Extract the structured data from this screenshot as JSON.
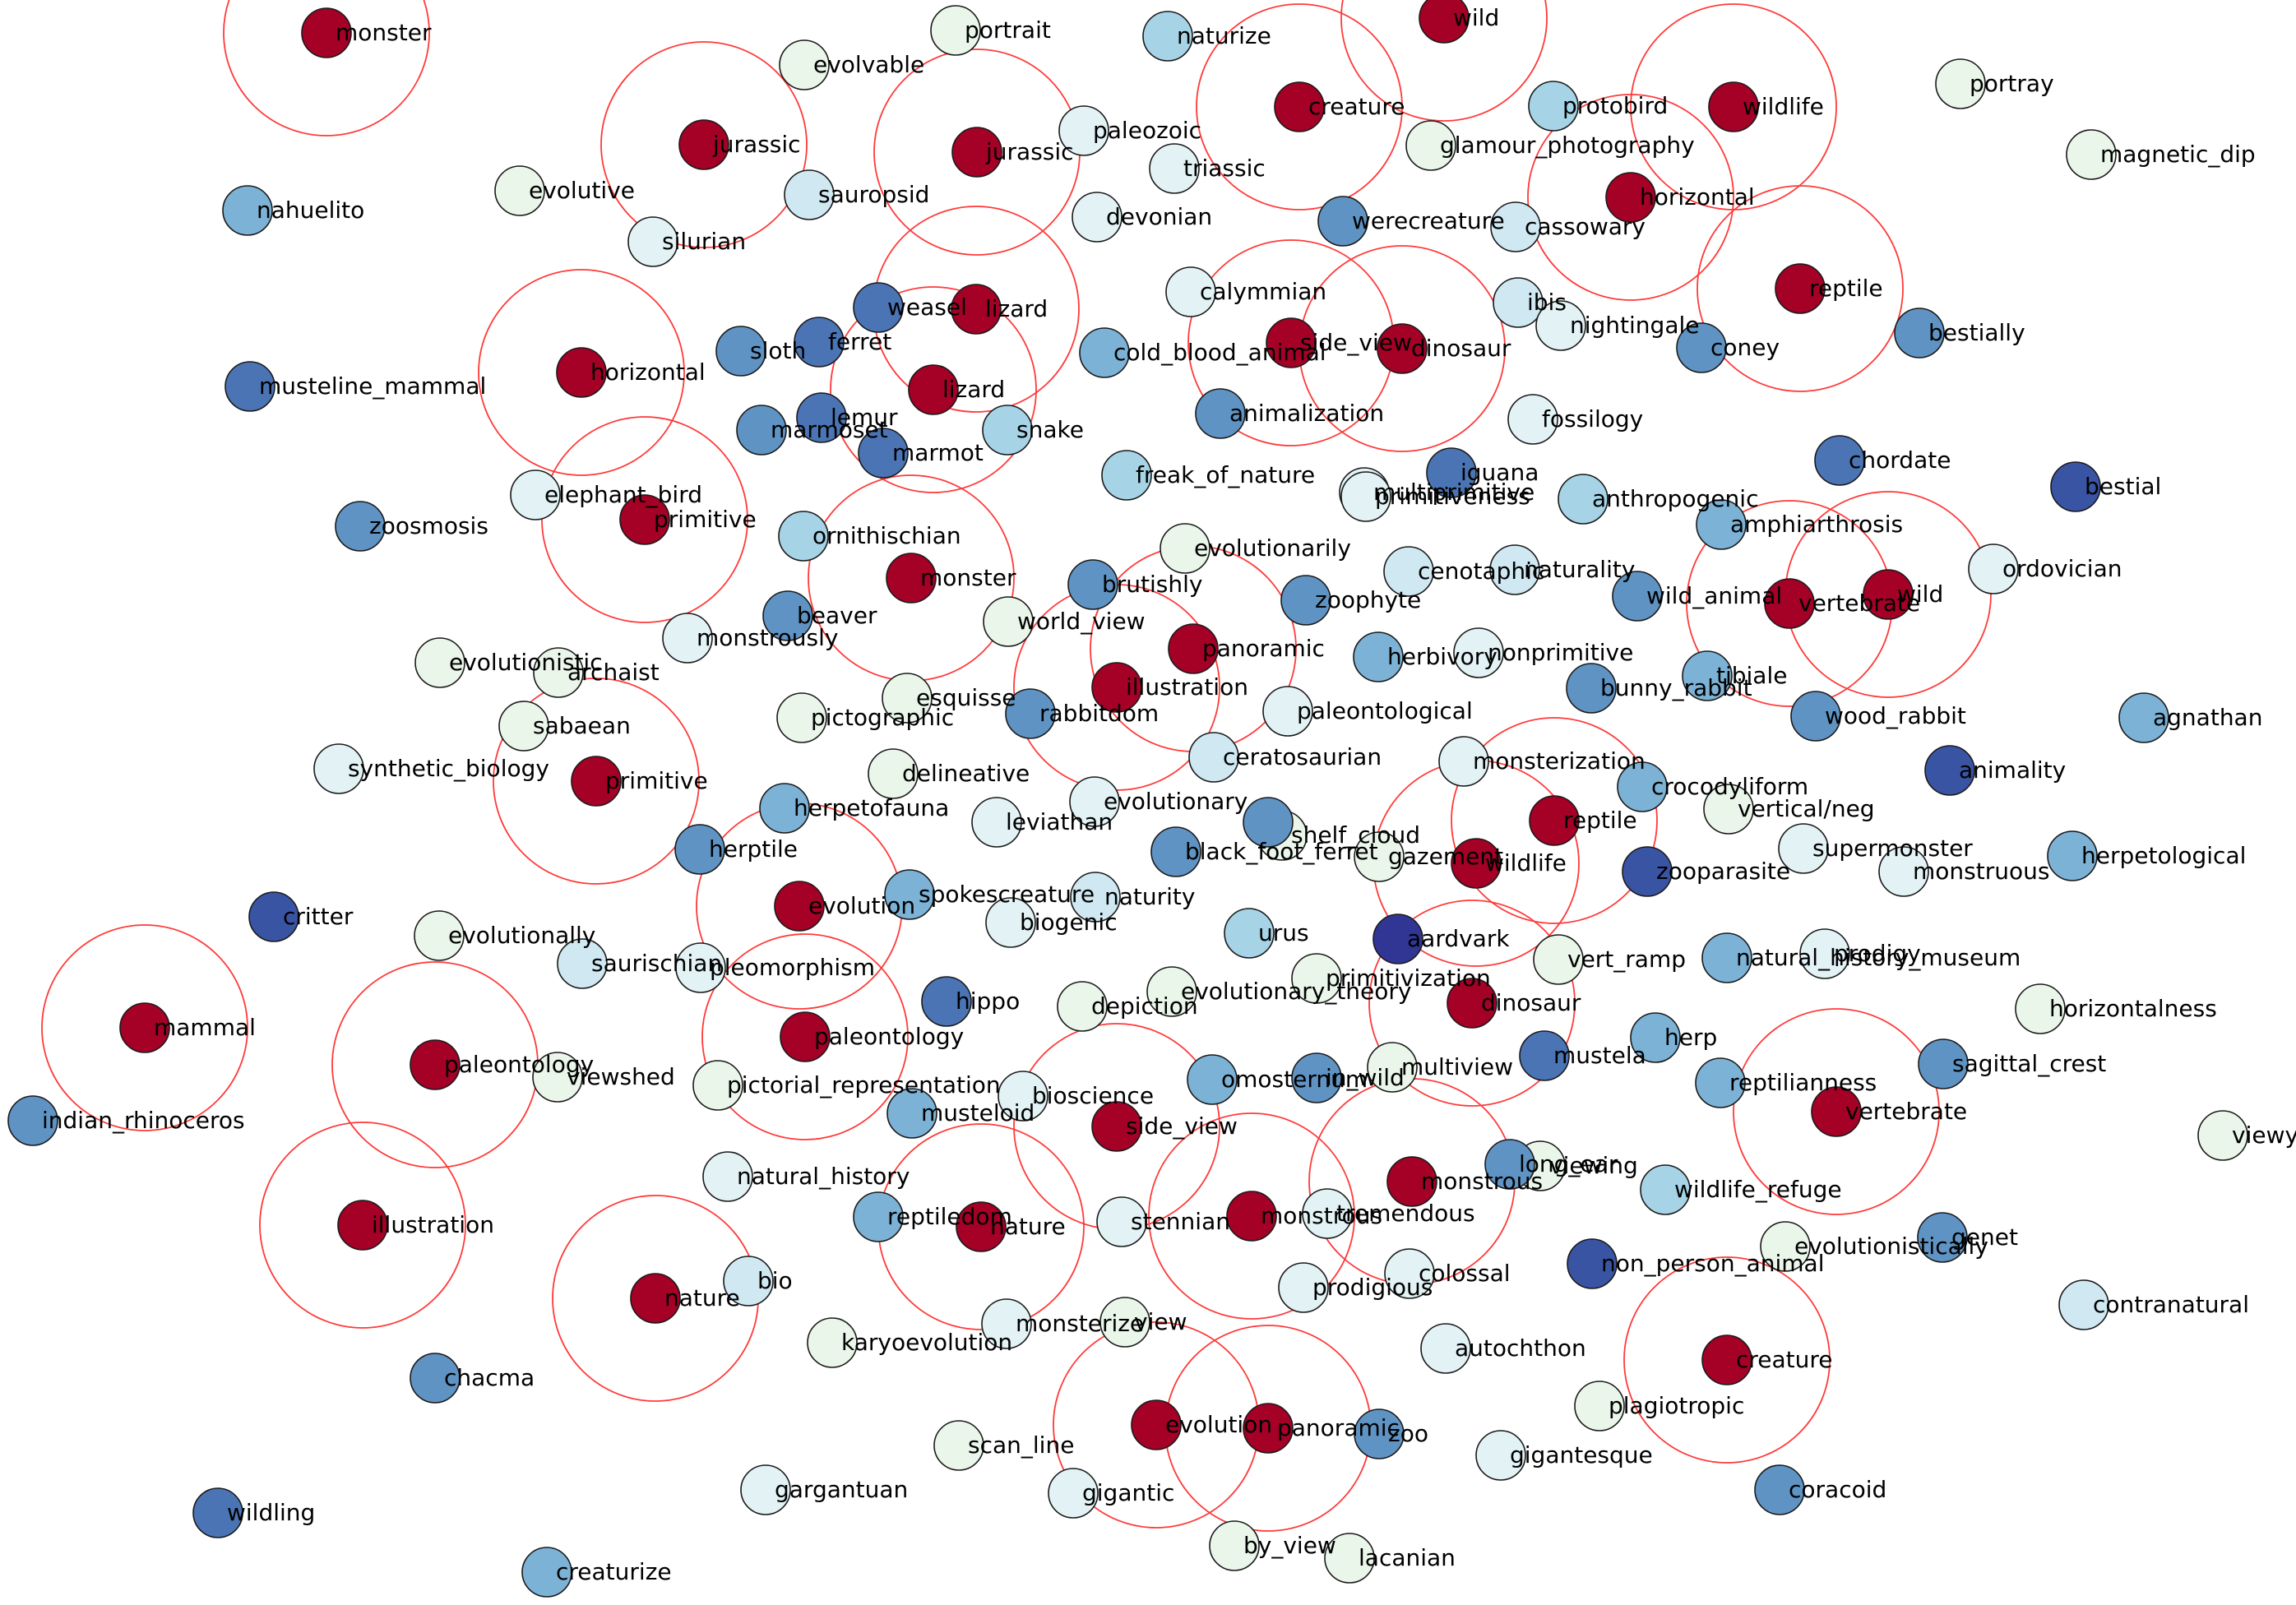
{
  "palette": {
    "seed": "#a50026",
    "c1": "#313695",
    "c2": "#3a54a4",
    "c3": "#4a74b4",
    "c4": "#5f93c3",
    "c5": "#7cb2d5",
    "c6": "#a6d4e6",
    "c7": "#cfe8f2",
    "c8": "#e2f2f5",
    "c9": "#eaf6ea",
    "ring": "#ff3a3a"
  },
  "nodes": [
    {
      "label": "monster",
      "c": "seed",
      "ring": true
    },
    {
      "label": "jurassic",
      "c": "seed",
      "ring": true
    },
    {
      "label": "jurassic",
      "c": "seed",
      "ring": true
    },
    {
      "label": "creature",
      "c": "seed",
      "ring": true
    },
    {
      "label": "wild",
      "c": "seed",
      "ring": true
    },
    {
      "label": "wildlife",
      "c": "seed",
      "ring": true
    },
    {
      "label": "horizontal",
      "c": "seed",
      "ring": true
    },
    {
      "label": "reptile",
      "c": "seed",
      "ring": true
    },
    {
      "label": "lizard",
      "c": "seed",
      "ring": true
    },
    {
      "label": "lizard",
      "c": "seed",
      "ring": true
    },
    {
      "label": "horizontal",
      "c": "seed",
      "ring": true
    },
    {
      "label": "side_view",
      "c": "seed",
      "ring": true
    },
    {
      "label": "dinosaur",
      "c": "seed",
      "ring": true
    },
    {
      "label": "primitive",
      "c": "seed",
      "ring": true
    },
    {
      "label": "monster",
      "c": "seed",
      "ring": true
    },
    {
      "label": "panoramic",
      "c": "seed",
      "ring": true
    },
    {
      "label": "illustration",
      "c": "seed",
      "ring": true
    },
    {
      "label": "vertebrate",
      "c": "seed",
      "ring": true
    },
    {
      "label": "wild",
      "c": "seed",
      "ring": true
    },
    {
      "label": "primitive",
      "c": "seed",
      "ring": true
    },
    {
      "label": "reptile",
      "c": "seed",
      "ring": true
    },
    {
      "label": "wildlife",
      "c": "seed",
      "ring": true
    },
    {
      "label": "evolution",
      "c": "seed",
      "ring": true
    },
    {
      "label": "mammal",
      "c": "seed",
      "ring": true
    },
    {
      "label": "paleontology",
      "c": "seed",
      "ring": true
    },
    {
      "label": "paleontology",
      "c": "seed",
      "ring": true
    },
    {
      "label": "dinosaur",
      "c": "seed",
      "ring": true
    },
    {
      "label": "side_view",
      "c": "seed",
      "ring": true
    },
    {
      "label": "vertebrate",
      "c": "seed",
      "ring": true
    },
    {
      "label": "illustration",
      "c": "seed",
      "ring": true
    },
    {
      "label": "monstrous",
      "c": "seed",
      "ring": true
    },
    {
      "label": "monstrous",
      "c": "seed",
      "ring": true
    },
    {
      "label": "nature",
      "c": "seed",
      "ring": true
    },
    {
      "label": "nature",
      "c": "seed",
      "ring": true
    },
    {
      "label": "creature",
      "c": "seed",
      "ring": true
    },
    {
      "label": "evolution",
      "c": "seed",
      "ring": true
    },
    {
      "label": "panoramic",
      "c": "seed",
      "ring": true
    },
    {
      "label": "evolvable",
      "c": "c9"
    },
    {
      "label": "portrait",
      "c": "c9"
    },
    {
      "label": "naturize",
      "c": "c6"
    },
    {
      "label": "portray",
      "c": "c9"
    },
    {
      "label": "magnetic_dip",
      "c": "c9"
    },
    {
      "label": "paleozoic",
      "c": "c8"
    },
    {
      "label": "triassic",
      "c": "c8"
    },
    {
      "label": "protobird",
      "c": "c6"
    },
    {
      "label": "glamour_photography",
      "c": "c9"
    },
    {
      "label": "nahuelito",
      "c": "c5"
    },
    {
      "label": "evolutive",
      "c": "c9"
    },
    {
      "label": "sauropsid",
      "c": "c7"
    },
    {
      "label": "silurian",
      "c": "c8"
    },
    {
      "label": "devonian",
      "c": "c8"
    },
    {
      "label": "werecreature",
      "c": "c4"
    },
    {
      "label": "cassowary",
      "c": "c7"
    },
    {
      "label": "calymmian",
      "c": "c8"
    },
    {
      "label": "ibis",
      "c": "c7"
    },
    {
      "label": "nightingale",
      "c": "c8"
    },
    {
      "label": "bestially",
      "c": "c4"
    },
    {
      "label": "weasel",
      "c": "c3"
    },
    {
      "label": "ferret",
      "c": "c3"
    },
    {
      "label": "sloth",
      "c": "c4"
    },
    {
      "label": "cold_blood_animal",
      "c": "c5"
    },
    {
      "label": "coney",
      "c": "c4"
    },
    {
      "label": "musteline_mammal",
      "c": "c3"
    },
    {
      "label": "lemur",
      "c": "c3"
    },
    {
      "label": "marmoset",
      "c": "c4"
    },
    {
      "label": "snake",
      "c": "c6"
    },
    {
      "label": "animalization",
      "c": "c4"
    },
    {
      "label": "fossilogy",
      "c": "c8"
    },
    {
      "label": "marmot",
      "c": "c3"
    },
    {
      "label": "chordate",
      "c": "c3"
    },
    {
      "label": "elephant_bird",
      "c": "c8"
    },
    {
      "label": "freak_of_nature",
      "c": "c6"
    },
    {
      "label": "multiprimitive",
      "c": "c8"
    },
    {
      "label": "primitiveness",
      "c": "c8"
    },
    {
      "label": "iguana",
      "c": "c3"
    },
    {
      "label": "bestial",
      "c": "c2"
    },
    {
      "label": "zoosmosis",
      "c": "c4"
    },
    {
      "label": "anthropogenic",
      "c": "c6"
    },
    {
      "label": "amphiarthrosis",
      "c": "c5"
    },
    {
      "label": "ornithischian",
      "c": "c6"
    },
    {
      "label": "evolutionarily",
      "c": "c9"
    },
    {
      "label": "ordovician",
      "c": "c8"
    },
    {
      "label": "brutishly",
      "c": "c4"
    },
    {
      "label": "naturality",
      "c": "c7"
    },
    {
      "label": "cenotaphic",
      "c": "c7"
    },
    {
      "label": "wild_animal",
      "c": "c4"
    },
    {
      "label": "beaver",
      "c": "c4"
    },
    {
      "label": "zoophyte",
      "c": "c4"
    },
    {
      "label": "monstrously",
      "c": "c8"
    },
    {
      "label": "world_view",
      "c": "c9"
    },
    {
      "label": "evolutionistic",
      "c": "c9"
    },
    {
      "label": "nonprimitive",
      "c": "c8"
    },
    {
      "label": "archaist",
      "c": "c9"
    },
    {
      "label": "herbivory",
      "c": "c5"
    },
    {
      "label": "bunny_rabbit",
      "c": "c4"
    },
    {
      "label": "tibiale",
      "c": "c5"
    },
    {
      "label": "esquisse",
      "c": "c9"
    },
    {
      "label": "sabaean",
      "c": "c9"
    },
    {
      "label": "pictographic",
      "c": "c9"
    },
    {
      "label": "rabbitdom",
      "c": "c4"
    },
    {
      "label": "paleontological",
      "c": "c8"
    },
    {
      "label": "wood_rabbit",
      "c": "c4"
    },
    {
      "label": "agnathan",
      "c": "c5"
    },
    {
      "label": "synthetic_biology",
      "c": "c8"
    },
    {
      "label": "delineative",
      "c": "c9"
    },
    {
      "label": "ceratosaurian",
      "c": "c7"
    },
    {
      "label": "monsterization",
      "c": "c8"
    },
    {
      "label": "crocodyliform",
      "c": "c5"
    },
    {
      "label": "animality",
      "c": "c2"
    },
    {
      "label": "herpetofauna",
      "c": "c5"
    },
    {
      "label": "evolutionary",
      "c": "c8"
    },
    {
      "label": "vertical/neg",
      "c": "c9"
    },
    {
      "label": "leviathan",
      "c": "c8"
    },
    {
      "label": "herptile",
      "c": "c4"
    },
    {
      "label": "shelf_cloud",
      "c": "c9"
    },
    {
      "label": "black_foot_ferret",
      "c": "c4"
    },
    {
      "label": "gazement",
      "c": "c9"
    },
    {
      "label": "supermonster",
      "c": "c8"
    },
    {
      "label": "monstruous",
      "c": "c8"
    },
    {
      "label": "herpetological",
      "c": "c5"
    },
    {
      "label": "zooparasite",
      "c": "c2"
    },
    {
      "label": "critter",
      "c": "c2"
    },
    {
      "label": "spokescreature",
      "c": "c5"
    },
    {
      "label": "naturity",
      "c": "c7"
    },
    {
      "label": "evolutionally",
      "c": "c9"
    },
    {
      "label": "biogenic",
      "c": "c8"
    },
    {
      "label": "urus",
      "c": "c6"
    },
    {
      "label": "aardvark",
      "c": "c1"
    },
    {
      "label": "saurischian",
      "c": "c7"
    },
    {
      "label": "pleomorphism",
      "c": "c8"
    },
    {
      "label": "vert_ramp",
      "c": "c9"
    },
    {
      "label": "natural_history_museum",
      "c": "c5"
    },
    {
      "label": "prodigy",
      "c": "c8"
    },
    {
      "label": "primitivization",
      "c": "c9"
    },
    {
      "label": "hippo",
      "c": "c3"
    },
    {
      "label": "evolutionary_theory",
      "c": "c9"
    },
    {
      "label": "horizontalness",
      "c": "c9"
    },
    {
      "label": "depiction",
      "c": "c9"
    },
    {
      "label": "herp",
      "c": "c5"
    },
    {
      "label": "sagittal_crest",
      "c": "c4"
    },
    {
      "label": "viewshed",
      "c": "c9"
    },
    {
      "label": "pictorial_representation",
      "c": "c9"
    },
    {
      "label": "multiview",
      "c": "c9"
    },
    {
      "label": "mustela",
      "c": "c3"
    },
    {
      "label": "reptilianness",
      "c": "c5"
    },
    {
      "label": "omosternum",
      "c": "c5"
    },
    {
      "label": "indian_rhinoceros",
      "c": "c4"
    },
    {
      "label": "bioscience",
      "c": "c8"
    },
    {
      "label": "in_wild",
      "c": "c4"
    },
    {
      "label": "musteloid",
      "c": "c5"
    },
    {
      "label": "viewy",
      "c": "c9"
    },
    {
      "label": "viewing",
      "c": "c9"
    },
    {
      "label": "long_ear",
      "c": "c4"
    },
    {
      "label": "natural_history",
      "c": "c8"
    },
    {
      "label": "wildlife_refuge",
      "c": "c6"
    },
    {
      "label": "reptiledom",
      "c": "c5"
    },
    {
      "label": "stennian",
      "c": "c8"
    },
    {
      "label": "tremendous",
      "c": "c8"
    },
    {
      "label": "genet",
      "c": "c4"
    },
    {
      "label": "evolutionistically",
      "c": "c9"
    },
    {
      "label": "bio",
      "c": "c7"
    },
    {
      "label": "non_person_animal",
      "c": "c2"
    },
    {
      "label": "colossal",
      "c": "c8"
    },
    {
      "label": "prodigious",
      "c": "c8"
    },
    {
      "label": "contranatural",
      "c": "c7"
    },
    {
      "label": "karyoevolution",
      "c": "c9"
    },
    {
      "label": "monsterize",
      "c": "c8"
    },
    {
      "label": "view",
      "c": "c9"
    },
    {
      "label": "autochthon",
      "c": "c8"
    },
    {
      "label": "chacma",
      "c": "c4"
    },
    {
      "label": "plagiotropic",
      "c": "c9"
    },
    {
      "label": "zoo",
      "c": "c4"
    },
    {
      "label": "scan_line",
      "c": "c9"
    },
    {
      "label": "gigantesque",
      "c": "c8"
    },
    {
      "label": "coracoid",
      "c": "c4"
    },
    {
      "label": "gargantuan",
      "c": "c8"
    },
    {
      "label": "gigantic",
      "c": "c8"
    },
    {
      "label": "wildling",
      "c": "c3"
    },
    {
      "label": "by_view",
      "c": "c9"
    },
    {
      "label": "lacanian",
      "c": "c9"
    },
    {
      "label": "creaturize",
      "c": "c5"
    },
    {
      "label": "",
      "c": "c4"
    }
  ]
}
